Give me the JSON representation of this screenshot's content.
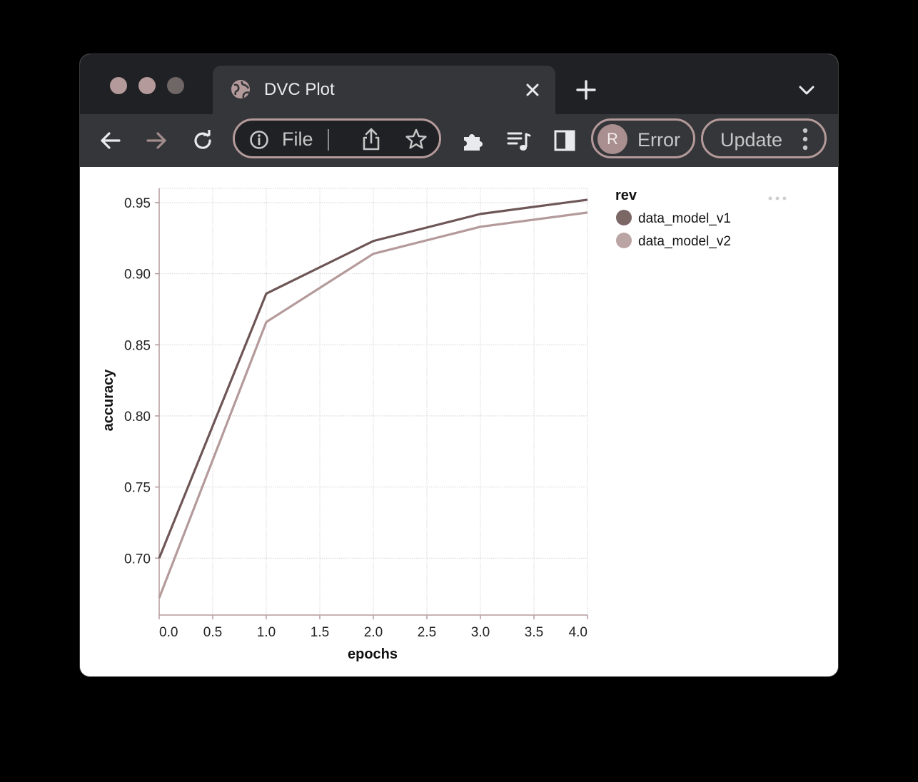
{
  "browser": {
    "tab": {
      "title": "DVC Plot"
    },
    "omnibox": {
      "label": "File"
    },
    "profile": {
      "initial": "R",
      "status": "Error"
    },
    "update_label": "Update",
    "colors": {
      "frame": "#202124",
      "toolbar": "#35363a",
      "accent": "#b49a9a",
      "traffic_1": "#b49a9a",
      "traffic_2": "#b49a9a",
      "traffic_3": "#7a7070"
    }
  },
  "chart_data": {
    "type": "line",
    "xlabel": "epochs",
    "ylabel": "accuracy",
    "x_ticks": [
      "0.0",
      "0.5",
      "1.0",
      "1.5",
      "2.0",
      "2.5",
      "3.0",
      "3.5",
      "4.0"
    ],
    "y_ticks": [
      "0.70",
      "0.75",
      "0.80",
      "0.85",
      "0.90",
      "0.95"
    ],
    "xlim": [
      0,
      4
    ],
    "ylim": [
      0.66,
      0.96
    ],
    "grid": true,
    "legend": {
      "title": "rev",
      "placement": "right"
    },
    "series": [
      {
        "name": "data_model_v1",
        "color": "#6e5656",
        "x": [
          0,
          1,
          2,
          3,
          4
        ],
        "y": [
          0.7,
          0.886,
          0.923,
          0.942,
          0.952
        ]
      },
      {
        "name": "data_model_v2",
        "color": "#b49a9a",
        "x": [
          0,
          1,
          2,
          3,
          4
        ],
        "y": [
          0.672,
          0.866,
          0.914,
          0.933,
          0.943
        ]
      }
    ]
  }
}
